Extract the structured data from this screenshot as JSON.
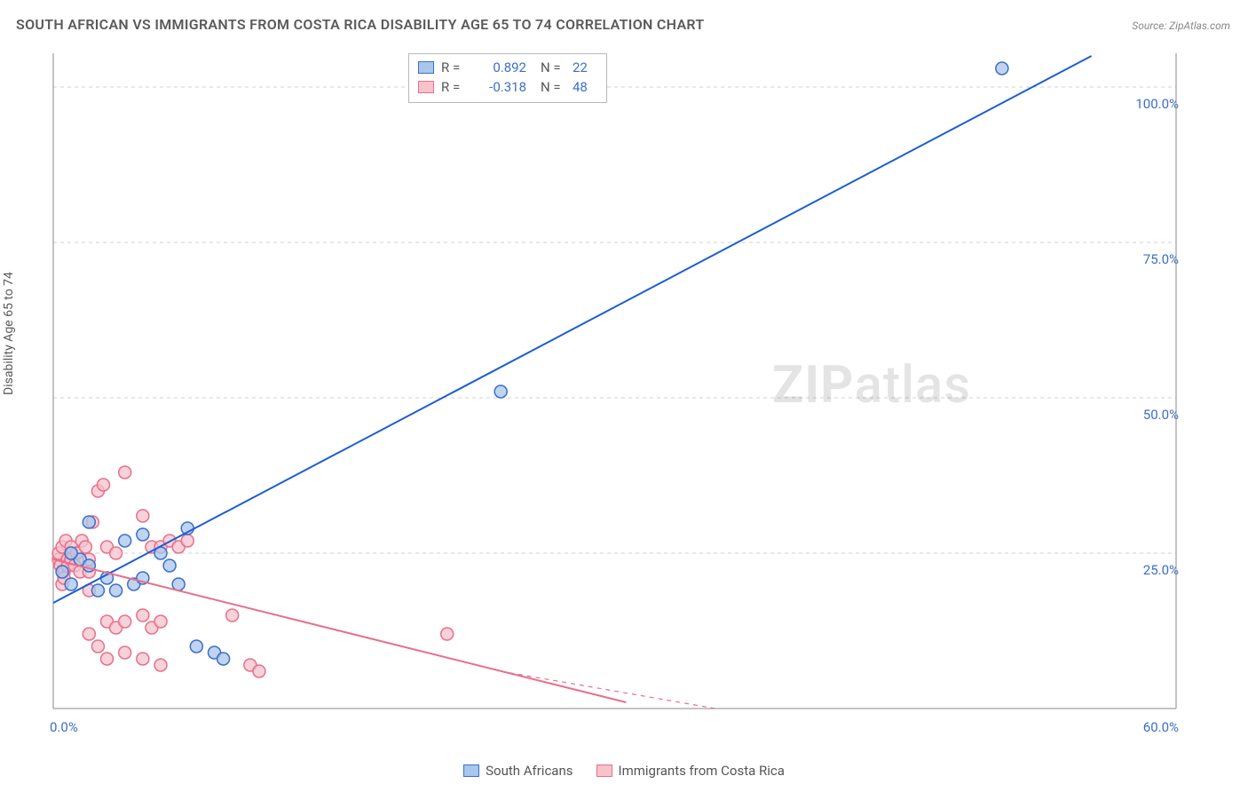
{
  "title": "SOUTH AFRICAN VS IMMIGRANTS FROM COSTA RICA DISABILITY AGE 65 TO 74 CORRELATION CHART",
  "source": "Source: ZipAtlas.com",
  "ylabel": "Disability Age 65 to 74",
  "watermark_a": "ZIP",
  "watermark_b": "atlas",
  "chart": {
    "type": "scatter",
    "background_color": "#ffffff",
    "grid_color": "#d0d0d0",
    "axis_color": "#888888",
    "tick_label_color": "#3b6fc9",
    "tick_fontsize": 15,
    "title_fontsize": 16,
    "title_color": "#5a5a5a",
    "xlim": [
      0,
      60
    ],
    "ylim": [
      0,
      105
    ],
    "yticks": [
      25,
      50,
      75,
      100
    ],
    "ytick_labels": [
      "25.0%",
      "50.0%",
      "75.0%",
      "100.0%"
    ],
    "xticks": [
      0,
      60
    ],
    "xtick_labels": [
      "0.0%",
      "60.0%"
    ],
    "marker_radius": 7,
    "marker_stroke_width": 1.5,
    "line_width": 2,
    "series": [
      {
        "name": "South Africans",
        "fill_color": "#a9c6ec",
        "stroke_color": "#3b6fc9",
        "line_color": "#1f5dd1",
        "r_value": "0.892",
        "n_value": "22",
        "points": [
          [
            0.5,
            22
          ],
          [
            1,
            20
          ],
          [
            1.5,
            24
          ],
          [
            2,
            30
          ],
          [
            2,
            23
          ],
          [
            2.5,
            19
          ],
          [
            1,
            25
          ],
          [
            3,
            21
          ],
          [
            3.5,
            19
          ],
          [
            4,
            27
          ],
          [
            4.5,
            20
          ],
          [
            5,
            28
          ],
          [
            5,
            21
          ],
          [
            6,
            25
          ],
          [
            6.5,
            23
          ],
          [
            7,
            20
          ],
          [
            7.5,
            29
          ],
          [
            8,
            10
          ],
          [
            9,
            9
          ],
          [
            9.5,
            8
          ],
          [
            25,
            51
          ],
          [
            53,
            103
          ]
        ],
        "trend_line": {
          "x1": 0,
          "y1": 17,
          "x2": 58,
          "y2": 105
        }
      },
      {
        "name": "Immigrants from Costa Rica",
        "fill_color": "#f6c3cd",
        "stroke_color": "#e96f8a",
        "line_color": "#e96f8a",
        "r_value": "-0.318",
        "n_value": "48",
        "points": [
          [
            0.3,
            24
          ],
          [
            0.3,
            25
          ],
          [
            0.4,
            23
          ],
          [
            0.5,
            26
          ],
          [
            0.6,
            22
          ],
          [
            0.7,
            27
          ],
          [
            0.8,
            24
          ],
          [
            0.5,
            20
          ],
          [
            0.6,
            21
          ],
          [
            0.8,
            23
          ],
          [
            1,
            26
          ],
          [
            1,
            24
          ],
          [
            1.2,
            23
          ],
          [
            1.3,
            25
          ],
          [
            1.5,
            22
          ],
          [
            1.6,
            27
          ],
          [
            1.8,
            26
          ],
          [
            2,
            24
          ],
          [
            2,
            22
          ],
          [
            2.2,
            30
          ],
          [
            4,
            38
          ],
          [
            2.5,
            35
          ],
          [
            2.8,
            36
          ],
          [
            3,
            26
          ],
          [
            3.5,
            25
          ],
          [
            2,
            19
          ],
          [
            3,
            14
          ],
          [
            3.5,
            13
          ],
          [
            4,
            14
          ],
          [
            5,
            15
          ],
          [
            5.5,
            13
          ],
          [
            6,
            14
          ],
          [
            5,
            31
          ],
          [
            5.5,
            26
          ],
          [
            6,
            26
          ],
          [
            6.5,
            27
          ],
          [
            7,
            26
          ],
          [
            7.5,
            27
          ],
          [
            2,
            12
          ],
          [
            2.5,
            10
          ],
          [
            3,
            8
          ],
          [
            4,
            9
          ],
          [
            5,
            8
          ],
          [
            6,
            7
          ],
          [
            10,
            15
          ],
          [
            11,
            7
          ],
          [
            11.5,
            6
          ],
          [
            22,
            12
          ]
        ],
        "trend_line": {
          "x1": 0,
          "y1": 24,
          "x2": 32,
          "y2": 1
        },
        "trend_extension": {
          "x1": 25,
          "y1": 6,
          "x2": 37,
          "y2": 0
        }
      }
    ]
  },
  "legend_box": {
    "r_label": "R =",
    "n_label": "N ="
  },
  "bottom_legend": [
    {
      "label": "South Africans",
      "fill": "#a9c6ec",
      "stroke": "#3b6fc9"
    },
    {
      "label": "Immigrants from Costa Rica",
      "fill": "#f6c3cd",
      "stroke": "#e96f8a"
    }
  ]
}
